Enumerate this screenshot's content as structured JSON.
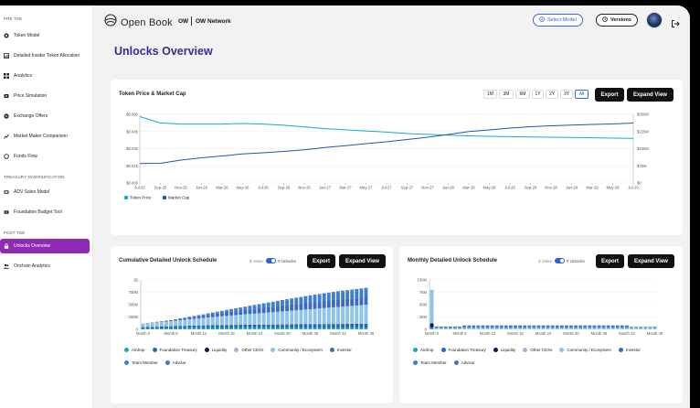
{
  "sidebar": {
    "sections": [
      "PRE TGE",
      "TREASURY DIVERSIFICATION",
      "POST TGE"
    ],
    "items": [
      {
        "label": "Token Model",
        "icon": "token-icon"
      },
      {
        "label": "Detailed Insider Token Allocation",
        "icon": "allocation-icon"
      },
      {
        "label": "Analytics",
        "icon": "analytics-icon"
      },
      {
        "label": "Price Simulation",
        "icon": "price-icon"
      },
      {
        "label": "Exchange Offers",
        "icon": "exchange-icon"
      },
      {
        "label": "Market Maker Comparison",
        "icon": "market-maker-icon"
      },
      {
        "label": "Funds Flow",
        "icon": "funds-flow-icon"
      },
      {
        "label": "ADV Sales Model",
        "icon": "sales-icon"
      },
      {
        "label": "Foundation Budget Tool",
        "icon": "budget-icon"
      },
      {
        "label": "Unlocks Overview",
        "icon": "lock-icon"
      },
      {
        "label": "Onchain Analytics",
        "icon": "onchain-icon"
      }
    ]
  },
  "header": {
    "brand": "Open Book",
    "project_code": "OW",
    "project_name": "OW Network",
    "select_model": "Select Model",
    "versions": "Versions"
  },
  "page": {
    "title": "Unlocks Overview"
  },
  "price_card": {
    "title": "Token Price & Market Cap",
    "ranges": [
      "1M",
      "3M",
      "6M",
      "1Y",
      "2Y",
      "3Y",
      "All"
    ],
    "selected_range": "All",
    "export": "Export",
    "expand": "Expand View"
  },
  "cum_card": {
    "title": "Cumulative Detailed Unlock Schedule",
    "toggle_left": "$ Value",
    "toggle_right": "# Unlocks",
    "export": "Export",
    "expand": "Expand View"
  },
  "mon_card": {
    "title": "Monthly Detailed Unlock Schedule",
    "toggle_left": "$ Value",
    "toggle_right": "# Unlocks",
    "export": "Export",
    "expand": "Expand View"
  },
  "colors": {
    "accent": "#8f2bb3",
    "title": "#3d2a8f",
    "token_price": "#17a7d6",
    "market_cap": "#1c5aa6"
  },
  "chart_data": [
    {
      "type": "line",
      "title": "",
      "x": [
        "Jul-25",
        "Sep-25",
        "Nov-25",
        "Jan-26",
        "Mar-26",
        "May-26",
        "Jul-26",
        "Sep-26",
        "Nov-26",
        "Jan-27",
        "Mar-27",
        "May-27",
        "Jul-27",
        "Sep-27",
        "Nov-27",
        "Jan-28",
        "Mar-28",
        "May-28",
        "Jul-28",
        "Sep-28",
        "Nov-28",
        "Jan-29",
        "Mar-29",
        "May-29",
        "Jul-29"
      ],
      "left_ticks": [
        "$0.060",
        "$0.045",
        "$0.030",
        "$0.015",
        "$0.000"
      ],
      "right_ticks": [
        "$300M",
        "$225M",
        "$150M",
        "$75M",
        "$0"
      ],
      "ylim_left": [
        0,
        0.06
      ],
      "ylim_right": [
        0,
        300
      ],
      "grid": true,
      "legend": "bottom-left",
      "series": [
        {
          "name": "Token Price",
          "axis": "left",
          "color": "#17a7d6",
          "values": [
            0.058,
            0.0525,
            0.0515,
            0.0515,
            0.0515,
            0.052,
            0.0515,
            0.0505,
            0.049,
            0.0475,
            0.0465,
            0.0455,
            0.0445,
            0.0432,
            0.0425,
            0.0418,
            0.0412,
            0.0408,
            0.0405,
            0.0402,
            0.04,
            0.0398,
            0.0395,
            0.0392,
            0.039
          ]
        },
        {
          "name": "Market Cap",
          "axis": "right",
          "color": "#1c5aa6",
          "values": [
            85,
            86,
            100,
            110,
            118,
            127,
            132,
            138,
            145,
            155,
            163,
            172,
            180,
            190,
            200,
            212,
            225,
            232,
            240,
            246,
            250,
            253,
            256,
            258,
            262
          ]
        }
      ]
    },
    {
      "type": "bar",
      "stacked": true,
      "title": "",
      "categories": [
        "Month 0",
        "Month 6",
        "Month 12",
        "Month 18",
        "Month 24",
        "Month 30",
        "Month 36",
        "Month 42",
        "Month 48"
      ],
      "y_ticks": [
        "1B",
        "750M",
        "500M",
        "250M",
        "0"
      ],
      "ylim": [
        0,
        1000
      ],
      "units": "M",
      "legend": "bottom",
      "series": [
        {
          "name": "Airdrop",
          "color": "#1aa6c9",
          "values": [
            10,
            18,
            25,
            30,
            30,
            30,
            30,
            30,
            30
          ]
        },
        {
          "name": "Foundation Treasury",
          "color": "#1a6fc4",
          "values": [
            25,
            35,
            45,
            50,
            55,
            60,
            65,
            70,
            75
          ]
        },
        {
          "name": "Liquidity",
          "color": "#0d1a4a",
          "values": [
            8,
            8,
            8,
            8,
            8,
            8,
            8,
            8,
            8
          ]
        },
        {
          "name": "Other CEXs",
          "color": "#9fb7cf",
          "values": [
            5,
            5,
            5,
            5,
            5,
            5,
            5,
            5,
            5
          ]
        },
        {
          "name": "Community / Ecosystem",
          "color": "#8ec3ec",
          "values": [
            70,
            100,
            140,
            180,
            220,
            260,
            300,
            340,
            380
          ]
        },
        {
          "name": "Investor",
          "color": "#3d68c6",
          "values": [
            0,
            20,
            45,
            70,
            95,
            120,
            140,
            150,
            150
          ]
        },
        {
          "name": "Team Member",
          "color": "#3a7fd0",
          "values": [
            0,
            0,
            15,
            40,
            65,
            90,
            115,
            140,
            160
          ]
        },
        {
          "name": "Advisor",
          "color": "#4a6fd3",
          "values": [
            0,
            0,
            5,
            10,
            15,
            20,
            25,
            28,
            30
          ]
        }
      ]
    },
    {
      "type": "bar",
      "stacked": true,
      "title": "",
      "categories": [
        "Month 0",
        "Month 6",
        "Month 12",
        "Month 18",
        "Month 24",
        "Month 30",
        "Month 36",
        "Month 42",
        "Month 48"
      ],
      "y_ticks": [
        "100M",
        "75M",
        "50M",
        "25M",
        "0"
      ],
      "ylim": [
        0,
        100
      ],
      "units": "M",
      "legend": "bottom",
      "series": [
        {
          "name": "Airdrop",
          "color": "#1aa6c9",
          "values": [
            2,
            0,
            0,
            0,
            0,
            0,
            0,
            0,
            0
          ]
        },
        {
          "name": "Foundation Treasury",
          "color": "#1a6fc4",
          "values": [
            2,
            0.5,
            0.5,
            0.5,
            0.5,
            0.5,
            0.5,
            0.5,
            0.5
          ]
        },
        {
          "name": "Liquidity",
          "color": "#0d1a4a",
          "values": [
            8,
            0,
            0,
            0,
            0,
            0,
            0,
            0,
            0
          ]
        },
        {
          "name": "Other CEXs",
          "color": "#9fb7cf",
          "values": [
            0,
            0,
            0,
            0,
            0,
            0,
            0,
            0,
            0
          ]
        },
        {
          "name": "Community / Ecosystem",
          "color": "#8ec3ec",
          "values": [
            68,
            2.5,
            2.5,
            2.5,
            2.5,
            2.5,
            2.5,
            2.5,
            2.5
          ]
        },
        {
          "name": "Investor",
          "color": "#3d68c6",
          "values": [
            0,
            2.5,
            0,
            0,
            0,
            0,
            0,
            0,
            0
          ]
        },
        {
          "name": "Team Member",
          "color": "#3a7fd0",
          "values": [
            0,
            0,
            5,
            5,
            5,
            5,
            5,
            5,
            2
          ]
        },
        {
          "name": "Advisor",
          "color": "#4a6fd3",
          "values": [
            0,
            0,
            0,
            0,
            0,
            0,
            0,
            0,
            0
          ]
        }
      ]
    }
  ]
}
